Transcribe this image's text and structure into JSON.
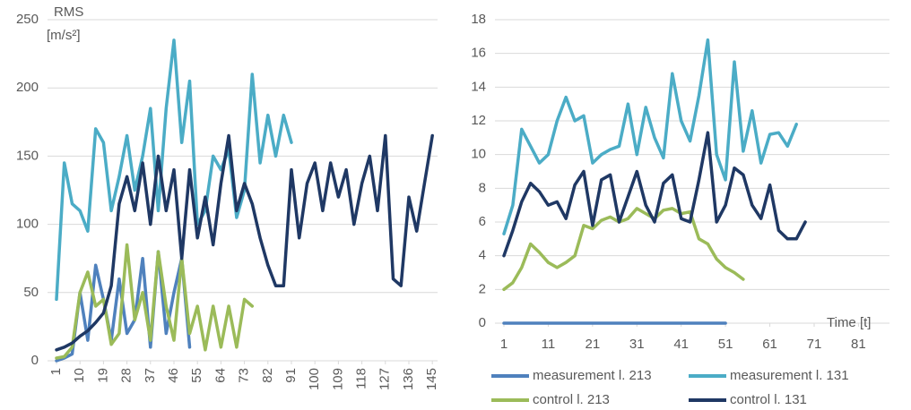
{
  "chart_data": [
    {
      "type": "line",
      "ylabel": [
        "RMS",
        "[m/s²]"
      ],
      "x": [
        1,
        4,
        7,
        10,
        13,
        16,
        19,
        22,
        25,
        28,
        31,
        34,
        37,
        40,
        43,
        46,
        49,
        52,
        55,
        58,
        61,
        64,
        67,
        70,
        73,
        76,
        79,
        82,
        85,
        88,
        91,
        94,
        97,
        100,
        103,
        106,
        109,
        112,
        115,
        118,
        121,
        124,
        127,
        130,
        133,
        136,
        139,
        142,
        145
      ],
      "xlim": [
        1,
        147
      ],
      "xticks": [
        1,
        10,
        19,
        28,
        37,
        46,
        55,
        64,
        73,
        82,
        91,
        100,
        109,
        118,
        127,
        136,
        145
      ],
      "ylim": [
        0,
        250
      ],
      "yticks": [
        0,
        50,
        100,
        150,
        200,
        250
      ],
      "grid": true,
      "series": [
        {
          "color": "#4f81bd",
          "values": [
            0,
            2,
            5,
            50,
            15,
            70,
            45,
            15,
            60,
            20,
            30,
            75,
            10,
            80,
            20,
            50,
            75,
            10,
            null,
            null,
            null,
            null,
            null,
            null,
            null,
            null,
            null,
            null,
            null,
            null,
            null,
            null,
            null,
            null,
            null,
            null,
            null,
            null,
            null,
            null,
            null,
            null,
            null,
            null,
            null,
            null,
            null,
            null,
            null
          ]
        },
        {
          "color": "#4bacc6",
          "values": [
            45,
            145,
            115,
            110,
            95,
            170,
            160,
            110,
            135,
            165,
            125,
            150,
            185,
            110,
            185,
            235,
            160,
            205,
            100,
            110,
            150,
            140,
            155,
            105,
            125,
            210,
            145,
            180,
            150,
            180,
            160,
            null,
            null,
            null,
            null,
            null,
            null,
            null,
            null,
            null,
            null,
            null,
            null,
            null,
            null,
            null,
            null,
            null,
            null
          ]
        },
        {
          "color": "#9bbb59",
          "values": [
            2,
            3,
            10,
            50,
            65,
            40,
            45,
            12,
            20,
            85,
            30,
            50,
            15,
            80,
            40,
            15,
            75,
            20,
            40,
            8,
            40,
            10,
            40,
            10,
            45,
            40,
            null,
            null,
            null,
            null,
            null,
            null,
            null,
            null,
            null,
            null,
            null,
            null,
            null,
            null,
            null,
            null,
            null,
            null,
            null,
            null,
            null,
            null,
            null
          ]
        },
        {
          "color": "#1f3864",
          "values": [
            8,
            10,
            13,
            18,
            22,
            28,
            35,
            55,
            115,
            135,
            110,
            145,
            100,
            150,
            110,
            140,
            75,
            140,
            90,
            120,
            85,
            130,
            165,
            110,
            130,
            115,
            90,
            70,
            55,
            55,
            140,
            90,
            130,
            145,
            110,
            145,
            120,
            140,
            100,
            130,
            150,
            110,
            165,
            60,
            55,
            120,
            95,
            130,
            165
          ]
        }
      ]
    },
    {
      "type": "line",
      "xlabel": "Time [t]",
      "x": [
        1,
        3,
        5,
        7,
        9,
        11,
        13,
        15,
        17,
        19,
        21,
        23,
        25,
        27,
        29,
        31,
        33,
        35,
        37,
        39,
        41,
        43,
        45,
        47,
        49,
        51,
        53,
        55,
        57,
        59,
        61,
        63,
        65,
        67,
        69
      ],
      "xlim": [
        1,
        88
      ],
      "xticks": [
        1,
        11,
        21,
        31,
        41,
        51,
        61,
        71,
        81
      ],
      "ylim": [
        0,
        18
      ],
      "yticks": [
        0,
        2,
        4,
        6,
        8,
        10,
        12,
        14,
        16,
        18
      ],
      "grid": true,
      "legend": "bottom",
      "series": [
        {
          "name": "measurement l. 213",
          "color": "#4f81bd",
          "values": [
            0,
            0,
            0,
            0,
            0,
            0,
            0,
            0,
            0,
            0,
            0,
            0,
            0,
            0,
            0,
            0,
            0,
            0,
            0,
            0,
            0,
            0,
            0,
            0,
            0,
            0,
            null,
            null,
            null,
            null,
            null,
            null,
            null,
            null,
            null
          ]
        },
        {
          "name": "measurement l. 131",
          "color": "#4bacc6",
          "values": [
            5.3,
            7,
            11.5,
            10.5,
            9.5,
            10,
            12,
            13.4,
            12,
            12.3,
            9.5,
            10,
            10.3,
            10.5,
            13,
            10,
            12.8,
            11,
            9.8,
            14.8,
            12,
            10.8,
            13.5,
            16.8,
            10,
            8.5,
            15.5,
            10.2,
            12.6,
            9.5,
            11.2,
            11.3,
            10.5,
            11.8,
            null
          ]
        },
        {
          "name": "control l. 213",
          "color": "#9bbb59",
          "values": [
            2.0,
            2.4,
            3.3,
            4.7,
            4.2,
            3.6,
            3.3,
            3.6,
            4.0,
            5.8,
            5.6,
            6.1,
            6.3,
            6.0,
            6.2,
            6.8,
            6.5,
            6.2,
            6.7,
            6.8,
            6.5,
            6.6,
            5.0,
            4.7,
            3.8,
            3.3,
            3.0,
            2.6,
            null,
            null,
            null,
            null,
            null,
            null,
            null
          ]
        },
        {
          "name": "control l. 131",
          "color": "#1f3864",
          "values": [
            4.0,
            5.5,
            7.2,
            8.3,
            7.8,
            7.0,
            7.2,
            6.2,
            8.2,
            9.0,
            5.8,
            8.5,
            8.8,
            6.0,
            7.5,
            9.0,
            7.0,
            6.0,
            8.3,
            8.8,
            6.2,
            6.0,
            8.5,
            11.3,
            6.0,
            7.0,
            9.2,
            8.8,
            7.0,
            6.2,
            8.2,
            5.5,
            5.0,
            5.0,
            6.0
          ]
        }
      ]
    }
  ]
}
